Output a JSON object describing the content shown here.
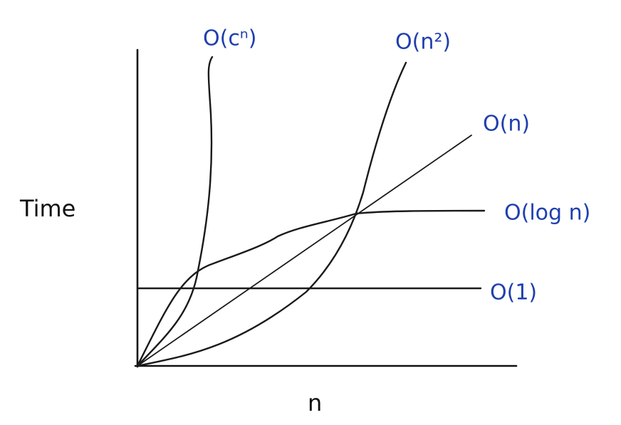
{
  "axes": {
    "y_label": "Time",
    "x_label": "n"
  },
  "curves": [
    {
      "label": "O(cⁿ)"
    },
    {
      "label": "O(n²)"
    },
    {
      "label": "O(n)"
    },
    {
      "label": "O(log n)"
    },
    {
      "label": "O(1)"
    }
  ]
}
